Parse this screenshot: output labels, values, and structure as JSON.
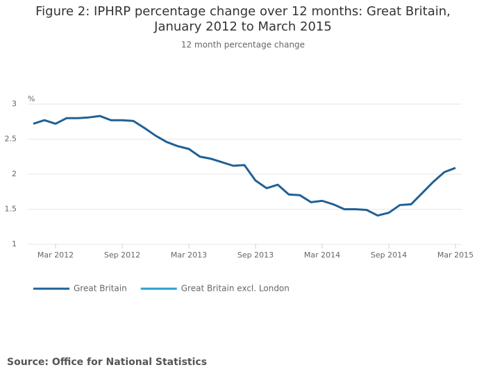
{
  "chart_data": {
    "type": "line",
    "title": "Figure 2: IPHRP percentage change over 12 months: Great Britain, January 2012 to March 2015",
    "subtitle": "12 month percentage change",
    "y_label": "%",
    "source": "Source: Office for National Statistics",
    "categories": [
      null,
      null,
      "Mar 2012",
      null,
      null,
      null,
      null,
      null,
      "Sep 2012",
      null,
      null,
      null,
      null,
      null,
      "Mar 2013",
      null,
      null,
      null,
      null,
      null,
      "Sep 2013",
      null,
      null,
      null,
      null,
      null,
      "Mar 2014",
      null,
      null,
      null,
      null,
      null,
      "Sep 2014",
      null,
      null,
      null,
      null,
      null,
      "Mar 2015"
    ],
    "series": [
      {
        "name": "Great Britain",
        "color": "#206095",
        "values": [
          2.72,
          2.77,
          2.72,
          2.8,
          2.8,
          2.81,
          2.83,
          2.77,
          2.77,
          2.76,
          2.66,
          2.55,
          2.46,
          2.4,
          2.36,
          2.25,
          2.22,
          2.17,
          2.12,
          2.13,
          1.91,
          1.8,
          1.85,
          1.71,
          1.7,
          1.6,
          1.62,
          1.57,
          1.5,
          1.5,
          1.49,
          1.41,
          1.45,
          1.56,
          1.57,
          1.73,
          1.89,
          2.03,
          2.09
        ]
      },
      {
        "name": "Great Britain excl. London",
        "color": "#27a0cc",
        "values": [
          null,
          null,
          null,
          null,
          null,
          null,
          null,
          null,
          null,
          null,
          null,
          null,
          null,
          null,
          null,
          null,
          null,
          null,
          null,
          null,
          null,
          null,
          null,
          null,
          null,
          null,
          null,
          null,
          null,
          null,
          null,
          null,
          null,
          null,
          null,
          null,
          null,
          null,
          null
        ]
      }
    ],
    "ylim": [
      1,
      3
    ],
    "yticks": [
      1,
      1.5,
      2,
      2.5,
      3
    ],
    "grid": true
  }
}
